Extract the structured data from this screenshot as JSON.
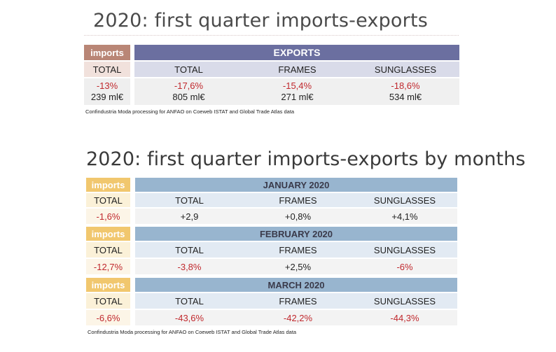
{
  "table1": {
    "title": "2020: first quarter imports-exports",
    "imports_label": "imports",
    "exports_label": "EXPORTS",
    "cols": [
      "TOTAL",
      "TOTAL",
      "FRAMES",
      "SUNGLASSES"
    ],
    "pct": [
      "-13%",
      "-17,6%",
      "-15,4%",
      "-18,6%"
    ],
    "amount": [
      "239 ml€",
      "805 ml€",
      "271 ml€",
      "534 ml€"
    ],
    "source": "Confindustria Moda processing for ANFAO on Coeweb ISTAT and Global Trade Atlas data"
  },
  "table2": {
    "title": "2020: first quarter imports-exports by months",
    "months": [
      {
        "imports_label": "imports",
        "month": "JANUARY 2020",
        "cols": [
          "TOTAL",
          "TOTAL",
          "FRAMES",
          "SUNGLASSES"
        ],
        "values": [
          "-1,6%",
          "+2,9",
          "+0,8%",
          "+4,1%"
        ]
      },
      {
        "imports_label": "imports",
        "month": "FEBRUARY 2020",
        "cols": [
          "TOTAL",
          "TOTAL",
          "FRAMES",
          "SUNGLASSES"
        ],
        "values": [
          "-12,7%",
          "-3,8%",
          "+2,5%",
          "-6%"
        ]
      },
      {
        "imports_label": "imports",
        "month": "MARCH 2020",
        "cols": [
          "TOTAL",
          "TOTAL",
          "FRAMES",
          "SUNGLASSES"
        ],
        "values": [
          "-6,6%",
          "-43,6%",
          "-42,2%",
          "-44,3%"
        ]
      }
    ],
    "source": "Confindustria Moda processing for ANFAO on Coeweb ISTAT and Global Trade Atlas data"
  },
  "colors": {
    "red_text": "#c0282d",
    "imports_header_1": "#b98676",
    "exports_header_1": "#6b6fa0",
    "imports_header_2": "#f1c76e",
    "exports_header_2": "#98b5cf"
  }
}
